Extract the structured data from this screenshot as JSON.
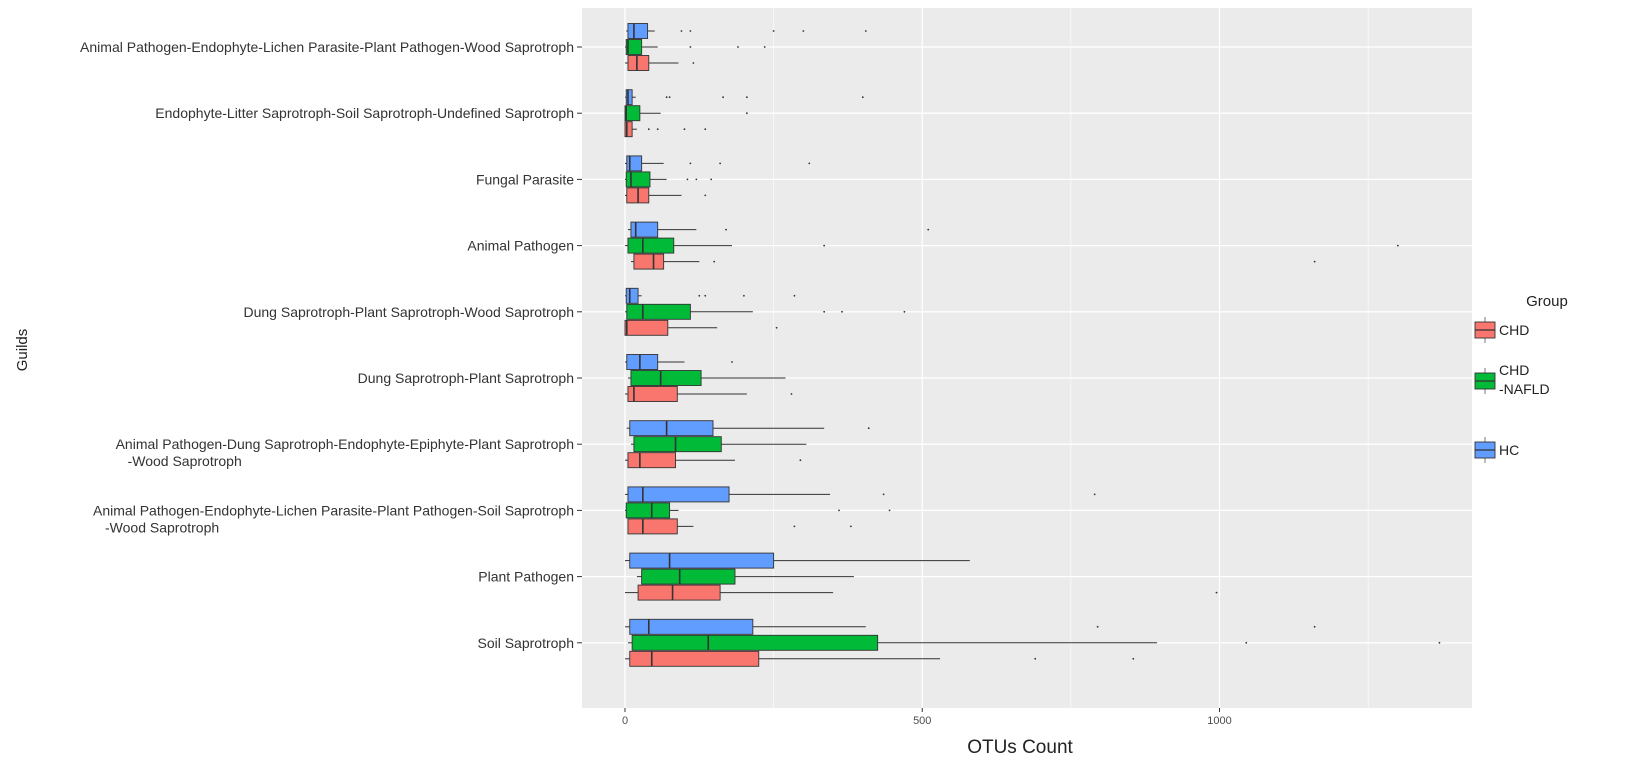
{
  "chart_data": {
    "type": "boxplot-horizontal",
    "xlabel": "OTUs Count",
    "ylabel": "Guilds",
    "xlim": [
      -70,
      1430
    ],
    "x_ticks": [
      0,
      500,
      1000
    ],
    "grid": true,
    "legend": {
      "title": "Group",
      "placement": "right",
      "entries": [
        {
          "key": "CHD",
          "label_lines": [
            "CHD"
          ]
        },
        {
          "key": "CHD-NAFLD",
          "label_lines": [
            "CHD",
            "-NAFLD"
          ]
        },
        {
          "key": "HC",
          "label_lines": [
            "HC"
          ]
        }
      ]
    },
    "colors": {
      "CHD": "#f8766d",
      "CHD-NAFLD": "#00ba38",
      "HC": "#619cff",
      "panel": "#ebebeb",
      "grid": "#ffffff"
    },
    "categories": [
      {
        "label_lines": [
          "Animal Pathogen-Endophyte-Lichen Parasite-Plant Pathogen-Wood Saprotroph"
        ],
        "boxes": {
          "HC": {
            "min": 2,
            "q1": 5,
            "median": 15,
            "q3": 38,
            "max": 50,
            "outliers": [
              95,
              110,
              250,
              300,
              405
            ]
          },
          "CHD-NAFLD": {
            "min": 0,
            "q1": 2,
            "median": 5,
            "q3": 28,
            "max": 55,
            "outliers": [
              110,
              190,
              235
            ]
          },
          "CHD": {
            "min": 0,
            "q1": 5,
            "median": 20,
            "q3": 40,
            "max": 90,
            "outliers": [
              115
            ]
          }
        }
      },
      {
        "label_lines": [
          "Endophyte-Litter Saprotroph-Soil Saprotroph-Undefined Saprotroph"
        ],
        "boxes": {
          "HC": {
            "min": 0,
            "q1": 2,
            "median": 5,
            "q3": 12,
            "max": 18,
            "outliers": [
              70,
              75,
              165,
              205,
              400
            ]
          },
          "CHD-NAFLD": {
            "min": 0,
            "q1": 0,
            "median": 2,
            "q3": 25,
            "max": 60,
            "outliers": [
              205
            ]
          },
          "CHD": {
            "min": 0,
            "q1": 0,
            "median": 3,
            "q3": 12,
            "max": 20,
            "outliers": [
              40,
              55,
              100,
              135
            ]
          }
        }
      },
      {
        "label_lines": [
          "Fungal Parasite"
        ],
        "boxes": {
          "HC": {
            "min": 0,
            "q1": 3,
            "median": 8,
            "q3": 28,
            "max": 65,
            "outliers": [
              110,
              160,
              310
            ]
          },
          "CHD-NAFLD": {
            "min": 0,
            "q1": 2,
            "median": 10,
            "q3": 42,
            "max": 70,
            "outliers": [
              105,
              120,
              145
            ]
          },
          "CHD": {
            "min": 0,
            "q1": 3,
            "median": 22,
            "q3": 40,
            "max": 95,
            "outliers": [
              135
            ]
          }
        }
      },
      {
        "label_lines": [
          "Animal Pathogen"
        ],
        "boxes": {
          "HC": {
            "min": 5,
            "q1": 10,
            "median": 18,
            "q3": 55,
            "max": 120,
            "outliers": [
              170,
              510
            ]
          },
          "CHD-NAFLD": {
            "min": 0,
            "q1": 5,
            "median": 30,
            "q3": 82,
            "max": 180,
            "outliers": [
              335,
              1300
            ]
          },
          "CHD": {
            "min": 10,
            "q1": 15,
            "median": 48,
            "q3": 65,
            "max": 125,
            "outliers": [
              150,
              1160
            ]
          }
        }
      },
      {
        "label_lines": [
          "Dung Saprotroph-Plant Saprotroph-Wood Saprotroph"
        ],
        "boxes": {
          "HC": {
            "min": 0,
            "q1": 2,
            "median": 8,
            "q3": 22,
            "max": 28,
            "outliers": [
              125,
              135,
              200,
              285
            ]
          },
          "CHD-NAFLD": {
            "min": 0,
            "q1": 3,
            "median": 30,
            "q3": 110,
            "max": 215,
            "outliers": [
              335,
              365,
              470
            ]
          },
          "CHD": {
            "min": 0,
            "q1": 0,
            "median": 3,
            "q3": 72,
            "max": 155,
            "outliers": [
              255
            ]
          }
        }
      },
      {
        "label_lines": [
          "Dung Saprotroph-Plant Saprotroph"
        ],
        "boxes": {
          "HC": {
            "min": 0,
            "q1": 3,
            "median": 25,
            "q3": 55,
            "max": 100,
            "outliers": [
              180
            ]
          },
          "CHD-NAFLD": {
            "min": 5,
            "q1": 10,
            "median": 60,
            "q3": 128,
            "max": 270,
            "outliers": []
          },
          "CHD": {
            "min": 0,
            "q1": 5,
            "median": 15,
            "q3": 88,
            "max": 205,
            "outliers": [
              280
            ]
          }
        }
      },
      {
        "label_lines": [
          "Animal Pathogen-Dung Saprotroph-Endophyte-Epiphyte-Plant Saprotroph",
          "-Wood Saprotroph"
        ],
        "boxes": {
          "HC": {
            "min": 3,
            "q1": 8,
            "median": 70,
            "q3": 148,
            "max": 335,
            "outliers": [
              410
            ]
          },
          "CHD-NAFLD": {
            "min": 10,
            "q1": 15,
            "median": 85,
            "q3": 162,
            "max": 305,
            "outliers": []
          },
          "CHD": {
            "min": 0,
            "q1": 5,
            "median": 25,
            "q3": 85,
            "max": 185,
            "outliers": [
              295
            ]
          }
        }
      },
      {
        "label_lines": [
          "Animal Pathogen-Endophyte-Lichen Parasite-Plant Pathogen-Soil Saprotroph",
          "-Wood Saprotroph"
        ],
        "boxes": {
          "HC": {
            "min": 0,
            "q1": 5,
            "median": 30,
            "q3": 175,
            "max": 345,
            "outliers": [
              435,
              790
            ]
          },
          "CHD-NAFLD": {
            "min": 0,
            "q1": 2,
            "median": 45,
            "q3": 75,
            "max": 90,
            "outliers": [
              360,
              445
            ]
          },
          "CHD": {
            "min": 5,
            "q1": 5,
            "median": 30,
            "q3": 88,
            "max": 115,
            "outliers": [
              285,
              380
            ]
          }
        }
      },
      {
        "label_lines": [
          "Plant Pathogen"
        ],
        "boxes": {
          "HC": {
            "min": 0,
            "q1": 8,
            "median": 75,
            "q3": 250,
            "max": 580,
            "outliers": []
          },
          "CHD-NAFLD": {
            "min": 20,
            "q1": 28,
            "median": 92,
            "q3": 185,
            "max": 385,
            "outliers": []
          },
          "CHD": {
            "min": 0,
            "q1": 22,
            "median": 80,
            "q3": 160,
            "max": 350,
            "outliers": [
              995
            ]
          }
        }
      },
      {
        "label_lines": [
          "Soil Saprotroph"
        ],
        "boxes": {
          "HC": {
            "min": 0,
            "q1": 8,
            "median": 40,
            "q3": 215,
            "max": 405,
            "outliers": [
              795,
              1160
            ]
          },
          "CHD-NAFLD": {
            "min": 5,
            "q1": 12,
            "median": 140,
            "q3": 425,
            "max": 895,
            "outliers": [
              1045,
              1370
            ]
          },
          "CHD": {
            "min": 0,
            "q1": 8,
            "median": 45,
            "q3": 225,
            "max": 530,
            "outliers": [
              690,
              855
            ]
          }
        }
      }
    ]
  }
}
